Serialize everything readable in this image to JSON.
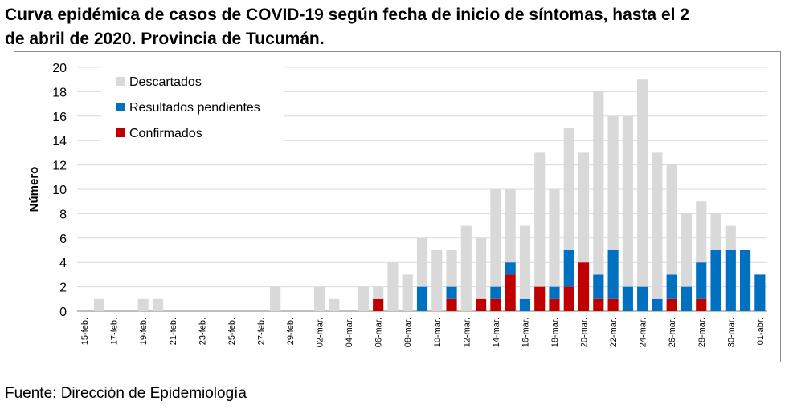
{
  "title_line1": "Curva epidémica de casos de COVID-19 según fecha de inicio de síntomas, hasta el 2",
  "title_line2": "de abril de 2020. Provincia de Tucumán.",
  "source": "Fuente: Dirección de Epidemiología",
  "colors": {
    "confirmados": "#c00000",
    "pendientes": "#0070c0",
    "descartados": "#d9d9d9",
    "grid": "#d9d9d9",
    "axis": "#7f7f7f"
  },
  "chart_data": {
    "type": "bar",
    "stacked": true,
    "ylabel": "Número",
    "ylim": [
      0,
      20
    ],
    "yticks": [
      0,
      2,
      4,
      6,
      8,
      10,
      12,
      14,
      16,
      18,
      20
    ],
    "grid": true,
    "legend_position": "top-left",
    "categories": [
      "15-feb.",
      "16-feb.",
      "17-feb.",
      "18-feb.",
      "19-feb.",
      "20-feb.",
      "21-feb.",
      "22-feb.",
      "23-feb.",
      "24-feb.",
      "25-feb.",
      "26-feb.",
      "27-feb.",
      "28-feb.",
      "29-feb.",
      "01-mar.",
      "02-mar.",
      "03-mar.",
      "04-mar.",
      "05-mar.",
      "06-mar.",
      "07-mar.",
      "08-mar.",
      "09-mar.",
      "10-mar.",
      "11-mar.",
      "12-mar.",
      "13-mar.",
      "14-mar.",
      "15-mar.",
      "16-mar.",
      "17-mar.",
      "18-mar.",
      "19-mar.",
      "20-mar.",
      "21-mar.",
      "22-mar.",
      "23-mar.",
      "24-mar.",
      "25-mar.",
      "26-mar.",
      "27-mar.",
      "28-mar.",
      "29-mar.",
      "30-mar.",
      "31-mar.",
      "01-abr."
    ],
    "tick_labels": [
      "15-feb.",
      "17-feb.",
      "19-feb.",
      "21-feb.",
      "23-feb.",
      "25-feb.",
      "27-feb.",
      "29-feb.",
      "02-mar.",
      "04-mar.",
      "06-mar.",
      "08-mar.",
      "10-mar.",
      "12-mar.",
      "14-mar.",
      "16-mar.",
      "18-mar.",
      "20-mar.",
      "22-mar.",
      "24-mar.",
      "26-mar.",
      "28-mar.",
      "30-mar.",
      "01-abr."
    ],
    "series": [
      {
        "name": "Confirmados",
        "color": "#c00000",
        "values": [
          0,
          0,
          0,
          0,
          0,
          0,
          0,
          0,
          0,
          0,
          0,
          0,
          0,
          0,
          0,
          0,
          0,
          0,
          0,
          0,
          1,
          0,
          0,
          0,
          0,
          1,
          0,
          1,
          1,
          3,
          0,
          2,
          1,
          2,
          4,
          1,
          1,
          0,
          0,
          0,
          1,
          0,
          1,
          0,
          0,
          0,
          0
        ]
      },
      {
        "name": "Resultados pendientes",
        "color": "#0070c0",
        "values": [
          0,
          0,
          0,
          0,
          0,
          0,
          0,
          0,
          0,
          0,
          0,
          0,
          0,
          0,
          0,
          0,
          0,
          0,
          0,
          0,
          0,
          0,
          0,
          2,
          0,
          1,
          0,
          0,
          1,
          1,
          1,
          0,
          1,
          3,
          0,
          2,
          4,
          2,
          2,
          1,
          2,
          2,
          3,
          5,
          5,
          5,
          3
        ]
      },
      {
        "name": "Descartados",
        "color": "#d9d9d9",
        "values": [
          0,
          1,
          0,
          0,
          1,
          1,
          0,
          0,
          0,
          0,
          0,
          0,
          0,
          2,
          0,
          0,
          2,
          1,
          0,
          2,
          1,
          4,
          3,
          4,
          5,
          3,
          7,
          5,
          8,
          6,
          6,
          11,
          8,
          10,
          9,
          15,
          11,
          14,
          17,
          12,
          9,
          6,
          5,
          3,
          2,
          0,
          0
        ]
      }
    ]
  }
}
